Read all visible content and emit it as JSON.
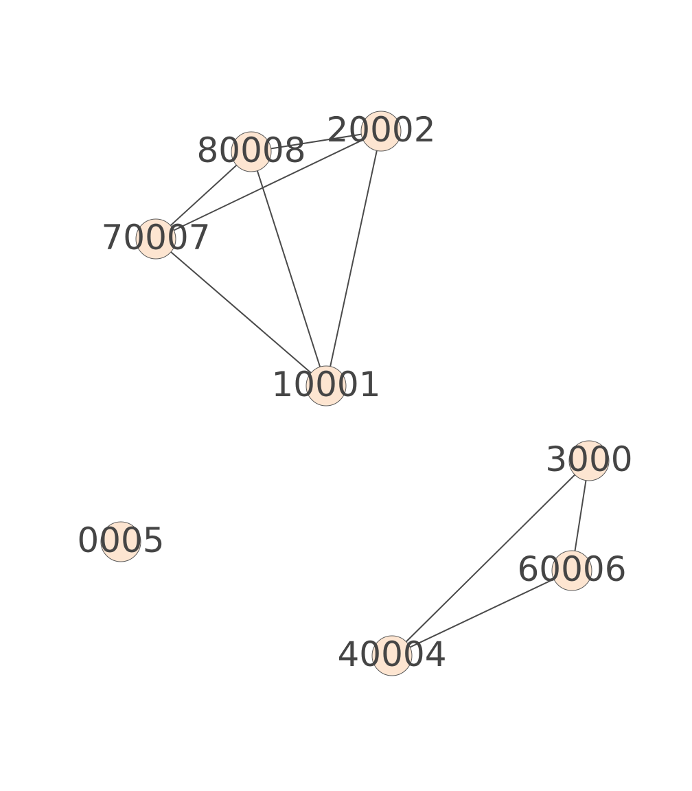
{
  "graph": {
    "nodes": [
      {
        "id": "n10001",
        "label": "10001"
      },
      {
        "id": "n20002",
        "label": "20002"
      },
      {
        "id": "n3000",
        "label": "3000"
      },
      {
        "id": "n40004",
        "label": "40004"
      },
      {
        "id": "n0005",
        "label": "0005"
      },
      {
        "id": "n60006",
        "label": "60006"
      },
      {
        "id": "n70007",
        "label": "70007"
      },
      {
        "id": "n80008",
        "label": "80008"
      }
    ],
    "edges": [
      {
        "source": "n80008",
        "target": "n20002"
      },
      {
        "source": "n80008",
        "target": "n70007"
      },
      {
        "source": "n80008",
        "target": "n10001"
      },
      {
        "source": "n20002",
        "target": "n70007"
      },
      {
        "source": "n20002",
        "target": "n10001"
      },
      {
        "source": "n70007",
        "target": "n10001"
      },
      {
        "source": "n3000",
        "target": "n60006"
      },
      {
        "source": "n3000",
        "target": "n40004"
      },
      {
        "source": "n60006",
        "target": "n40004"
      }
    ],
    "colors": {
      "node_fill": "#fde5d1",
      "node_stroke": "#5a5a5a",
      "edge": "#4a4a4a",
      "label": "#454545"
    }
  }
}
